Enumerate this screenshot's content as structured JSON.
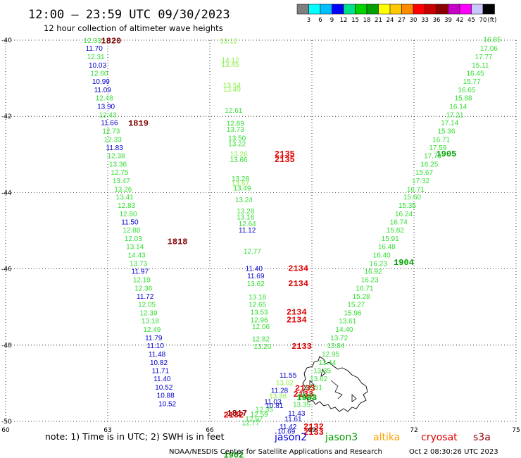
{
  "title": "12:00 — 23:59 UTC 09/30/2023",
  "subtitle": "12 hour collection of altimeter wave heights",
  "note": "note: 1) Time is in UTC; 2) SWH is in feet",
  "credit": "NOAA/NESDIS Center for Satellite Applications and Research",
  "timestamp": "Oct  2 08:30:26 UTC 2023",
  "colorbar": {
    "unit": "(ft)",
    "labels": [
      "3",
      "6",
      "9",
      "12",
      "15",
      "18",
      "21",
      "24",
      "27",
      "30",
      "33",
      "36",
      "39",
      "42",
      "45",
      "70"
    ],
    "colors": [
      "#7f7f7f",
      "#00ffff",
      "#00bfff",
      "#0000ff",
      "#00e08c",
      "#00d200",
      "#00a000",
      "#ffff00",
      "#ffc800",
      "#ff8c00",
      "#ff0000",
      "#c80000",
      "#8c0000",
      "#c800c8",
      "#ff00ff",
      "#c8c8ff",
      "#000000"
    ]
  },
  "legend": [
    {
      "name": "jason2",
      "color": "#0000dd"
    },
    {
      "name": "jason3",
      "color": "#00a000"
    },
    {
      "name": "altika",
      "color": "#ffa000"
    },
    {
      "name": "cryosat",
      "color": "#e00000"
    },
    {
      "name": "s3a",
      "color": "#900000"
    }
  ],
  "chart_data": {
    "type": "scatter",
    "xlim": [
      60,
      75
    ],
    "ylim": [
      -50,
      -40
    ],
    "xticks": [
      60,
      63,
      66,
      69,
      72,
      75
    ],
    "yticks": [
      -40,
      -42,
      -44,
      -46,
      -48,
      -50
    ],
    "grid": true,
    "color_key": {
      "blue": "#0000cc",
      "green": "#33dd33",
      "olive": "#00a000",
      "lime": "#88ee44",
      "red": "#e00000",
      "maroon": "#800000"
    },
    "points": [
      {
        "x": 62.55,
        "y": -40.07,
        "t": "12.33",
        "c": "green"
      },
      {
        "x": 62.6,
        "y": -40.28,
        "t": "11.70",
        "c": "blue"
      },
      {
        "x": 62.65,
        "y": -40.5,
        "t": "12.31",
        "c": "green"
      },
      {
        "x": 62.7,
        "y": -40.72,
        "t": "10.03",
        "c": "blue"
      },
      {
        "x": 62.75,
        "y": -40.93,
        "t": "12.60",
        "c": "green"
      },
      {
        "x": 62.8,
        "y": -41.15,
        "t": "10.99",
        "c": "blue"
      },
      {
        "x": 62.85,
        "y": -41.37,
        "t": "11.09",
        "c": "blue"
      },
      {
        "x": 62.9,
        "y": -41.58,
        "t": "12.48",
        "c": "green"
      },
      {
        "x": 62.95,
        "y": -41.8,
        "t": "13.90",
        "c": "blue"
      },
      {
        "x": 63.0,
        "y": -42.02,
        "t": "12.43",
        "c": "green"
      },
      {
        "x": 63.05,
        "y": -42.23,
        "t": "11.66",
        "c": "blue"
      },
      {
        "x": 63.1,
        "y": -42.45,
        "t": "12.73",
        "c": "green"
      },
      {
        "x": 63.15,
        "y": -42.67,
        "t": "12.33",
        "c": "green"
      },
      {
        "x": 63.2,
        "y": -42.88,
        "t": "11.83",
        "c": "blue"
      },
      {
        "x": 63.25,
        "y": -43.1,
        "t": "12.38",
        "c": "green"
      },
      {
        "x": 63.3,
        "y": -43.32,
        "t": "13.36",
        "c": "green"
      },
      {
        "x": 63.35,
        "y": -43.53,
        "t": "12.75",
        "c": "green"
      },
      {
        "x": 63.4,
        "y": -43.75,
        "t": "13.47",
        "c": "green"
      },
      {
        "x": 63.45,
        "y": -43.97,
        "t": "13.26",
        "c": "green"
      },
      {
        "x": 63.5,
        "y": -44.18,
        "t": "13.41",
        "c": "green"
      },
      {
        "x": 63.55,
        "y": -44.4,
        "t": "12.83",
        "c": "green"
      },
      {
        "x": 63.6,
        "y": -44.62,
        "t": "12.80",
        "c": "green"
      },
      {
        "x": 63.65,
        "y": -44.83,
        "t": "11.50",
        "c": "blue"
      },
      {
        "x": 63.7,
        "y": -45.05,
        "t": "12.88",
        "c": "green"
      },
      {
        "x": 63.75,
        "y": -45.27,
        "t": "12.03",
        "c": "green"
      },
      {
        "x": 63.8,
        "y": -45.48,
        "t": "13.14",
        "c": "green"
      },
      {
        "x": 63.85,
        "y": -45.7,
        "t": "14.43",
        "c": "green"
      },
      {
        "x": 63.9,
        "y": -45.92,
        "t": "13.73",
        "c": "green"
      },
      {
        "x": 63.95,
        "y": -46.13,
        "t": "11.97",
        "c": "blue"
      },
      {
        "x": 64.0,
        "y": -46.35,
        "t": "12.19",
        "c": "green"
      },
      {
        "x": 64.05,
        "y": -46.57,
        "t": "12.36",
        "c": "green"
      },
      {
        "x": 64.1,
        "y": -46.78,
        "t": "11.72",
        "c": "blue"
      },
      {
        "x": 64.15,
        "y": -47.0,
        "t": "12.05",
        "c": "green"
      },
      {
        "x": 64.2,
        "y": -47.22,
        "t": "12.39",
        "c": "green"
      },
      {
        "x": 64.25,
        "y": -47.43,
        "t": "13.18",
        "c": "green"
      },
      {
        "x": 64.3,
        "y": -47.65,
        "t": "12.49",
        "c": "green"
      },
      {
        "x": 64.35,
        "y": -47.87,
        "t": "11.79",
        "c": "blue"
      },
      {
        "x": 64.4,
        "y": -48.08,
        "t": "11.10",
        "c": "blue"
      },
      {
        "x": 64.45,
        "y": -48.3,
        "t": "11.48",
        "c": "blue"
      },
      {
        "x": 64.5,
        "y": -48.52,
        "t": "10.82",
        "c": "blue"
      },
      {
        "x": 64.55,
        "y": -48.73,
        "t": "11.71",
        "c": "blue"
      },
      {
        "x": 64.6,
        "y": -48.95,
        "t": "11.40",
        "c": "blue"
      },
      {
        "x": 64.65,
        "y": -49.17,
        "t": "10.52",
        "c": "blue"
      },
      {
        "x": 64.7,
        "y": -49.38,
        "t": "10.88",
        "c": "blue"
      },
      {
        "x": 64.75,
        "y": -49.6,
        "t": "10.52",
        "c": "blue"
      },
      {
        "x": 66.55,
        "y": -40.08,
        "t": "13.12",
        "c": "lime"
      },
      {
        "x": 66.6,
        "y": -40.58,
        "t": "14.12",
        "c": "lime"
      },
      {
        "x": 66.6,
        "y": -40.7,
        "t": "13.45",
        "c": "lime"
      },
      {
        "x": 66.65,
        "y": -41.25,
        "t": "13.54",
        "c": "lime"
      },
      {
        "x": 66.65,
        "y": -41.35,
        "t": "13.49",
        "c": "lime"
      },
      {
        "x": 66.7,
        "y": -41.9,
        "t": "12.61",
        "c": "green"
      },
      {
        "x": 66.75,
        "y": -42.25,
        "t": "12.89",
        "c": "green"
      },
      {
        "x": 66.75,
        "y": -42.4,
        "t": "13.73",
        "c": "green"
      },
      {
        "x": 66.8,
        "y": -42.63,
        "t": "13.50",
        "c": "green"
      },
      {
        "x": 66.8,
        "y": -42.78,
        "t": "13.22",
        "c": "green"
      },
      {
        "x": 66.85,
        "y": -43.05,
        "t": "13.26",
        "c": "lime"
      },
      {
        "x": 66.85,
        "y": -43.2,
        "t": "13.66",
        "c": "green"
      },
      {
        "x": 66.9,
        "y": -43.7,
        "t": "13.28",
        "c": "green"
      },
      {
        "x": 66.9,
        "y": -43.82,
        "t": "13.67",
        "c": "lime"
      },
      {
        "x": 66.95,
        "y": -43.95,
        "t": "13.49",
        "c": "green"
      },
      {
        "x": 67.0,
        "y": -44.25,
        "t": "13.24",
        "c": "green"
      },
      {
        "x": 67.05,
        "y": -44.55,
        "t": "13.28",
        "c": "green"
      },
      {
        "x": 67.05,
        "y": -44.7,
        "t": "13.16",
        "c": "green"
      },
      {
        "x": 67.1,
        "y": -44.88,
        "t": "12.64",
        "c": "green"
      },
      {
        "x": 67.1,
        "y": -45.05,
        "t": "11.12",
        "c": "blue"
      },
      {
        "x": 67.25,
        "y": -45.6,
        "t": "12.77",
        "c": "green"
      },
      {
        "x": 67.3,
        "y": -46.05,
        "t": "11.40",
        "c": "blue"
      },
      {
        "x": 67.35,
        "y": -46.25,
        "t": "11.69",
        "c": "blue"
      },
      {
        "x": 67.35,
        "y": -46.45,
        "t": "13.62",
        "c": "green"
      },
      {
        "x": 67.4,
        "y": -46.8,
        "t": "13.18",
        "c": "green"
      },
      {
        "x": 67.4,
        "y": -47.0,
        "t": "12.65",
        "c": "green"
      },
      {
        "x": 67.45,
        "y": -47.2,
        "t": "13.53",
        "c": "green"
      },
      {
        "x": 67.45,
        "y": -47.4,
        "t": "12.96",
        "c": "green"
      },
      {
        "x": 67.5,
        "y": -47.58,
        "t": "12.06",
        "c": "green"
      },
      {
        "x": 67.5,
        "y": -47.9,
        "t": "12.82",
        "c": "green"
      },
      {
        "x": 67.55,
        "y": -48.1,
        "t": "13.20",
        "c": "green"
      },
      {
        "x": 68.3,
        "y": -48.85,
        "t": "11.55",
        "c": "blue"
      },
      {
        "x": 68.2,
        "y": -49.05,
        "t": "13.02",
        "c": "lime"
      },
      {
        "x": 68.05,
        "y": -49.25,
        "t": "11.28",
        "c": "blue"
      },
      {
        "x": 68.0,
        "y": -49.4,
        "t": "13.36",
        "c": "lime"
      },
      {
        "x": 67.85,
        "y": -49.55,
        "t": "11.03",
        "c": "blue"
      },
      {
        "x": 67.9,
        "y": -49.65,
        "t": "10.81",
        "c": "blue"
      },
      {
        "x": 67.6,
        "y": -49.75,
        "t": "12.35",
        "c": "green"
      },
      {
        "x": 67.45,
        "y": -49.88,
        "t": "12.59",
        "c": "green"
      },
      {
        "x": 67.3,
        "y": -50.0,
        "t": "12.97",
        "c": "green"
      },
      {
        "x": 67.2,
        "y": -50.1,
        "t": "12.77",
        "c": "green"
      },
      {
        "x": 74.3,
        "y": -40.05,
        "t": "16.85",
        "c": "green"
      },
      {
        "x": 74.2,
        "y": -40.28,
        "t": "17.06",
        "c": "green"
      },
      {
        "x": 74.05,
        "y": -40.5,
        "t": "17.77",
        "c": "green"
      },
      {
        "x": 73.95,
        "y": -40.72,
        "t": "15.11",
        "c": "green"
      },
      {
        "x": 73.8,
        "y": -40.93,
        "t": "16.45",
        "c": "green"
      },
      {
        "x": 73.7,
        "y": -41.15,
        "t": "15.77",
        "c": "green"
      },
      {
        "x": 73.55,
        "y": -41.37,
        "t": "16.65",
        "c": "green"
      },
      {
        "x": 73.45,
        "y": -41.58,
        "t": "15.88",
        "c": "green"
      },
      {
        "x": 73.3,
        "y": -41.8,
        "t": "16.14",
        "c": "green"
      },
      {
        "x": 73.2,
        "y": -42.02,
        "t": "17.21",
        "c": "green"
      },
      {
        "x": 73.05,
        "y": -42.23,
        "t": "17.14",
        "c": "green"
      },
      {
        "x": 72.95,
        "y": -42.45,
        "t": "15.36",
        "c": "green"
      },
      {
        "x": 72.8,
        "y": -42.67,
        "t": "16.71",
        "c": "green"
      },
      {
        "x": 72.7,
        "y": -42.88,
        "t": "17.59",
        "c": "green"
      },
      {
        "x": 72.55,
        "y": -43.1,
        "t": "17.73",
        "c": "green"
      },
      {
        "x": 72.45,
        "y": -43.32,
        "t": "16.25",
        "c": "green"
      },
      {
        "x": 72.3,
        "y": -43.53,
        "t": "15.67",
        "c": "green"
      },
      {
        "x": 72.2,
        "y": -43.75,
        "t": "17.32",
        "c": "green"
      },
      {
        "x": 72.05,
        "y": -43.97,
        "t": "16.71",
        "c": "green"
      },
      {
        "x": 71.95,
        "y": -44.18,
        "t": "15.60",
        "c": "green"
      },
      {
        "x": 71.8,
        "y": -44.4,
        "t": "15.35",
        "c": "green"
      },
      {
        "x": 71.7,
        "y": -44.62,
        "t": "16.24",
        "c": "green"
      },
      {
        "x": 71.55,
        "y": -44.83,
        "t": "16.74",
        "c": "green"
      },
      {
        "x": 71.45,
        "y": -45.05,
        "t": "15.82",
        "c": "green"
      },
      {
        "x": 71.3,
        "y": -45.27,
        "t": "15.91",
        "c": "green"
      },
      {
        "x": 71.2,
        "y": -45.48,
        "t": "16.48",
        "c": "green"
      },
      {
        "x": 71.05,
        "y": -45.7,
        "t": "16.40",
        "c": "green"
      },
      {
        "x": 70.95,
        "y": -45.92,
        "t": "16.23",
        "c": "green"
      },
      {
        "x": 70.8,
        "y": -46.13,
        "t": "16.92",
        "c": "green"
      },
      {
        "x": 70.7,
        "y": -46.35,
        "t": "16.23",
        "c": "green"
      },
      {
        "x": 70.55,
        "y": -46.57,
        "t": "16.71",
        "c": "green"
      },
      {
        "x": 70.45,
        "y": -46.78,
        "t": "15.28",
        "c": "green"
      },
      {
        "x": 70.3,
        "y": -47.0,
        "t": "15.27",
        "c": "green"
      },
      {
        "x": 70.2,
        "y": -47.22,
        "t": "15.96",
        "c": "green"
      },
      {
        "x": 70.05,
        "y": -47.43,
        "t": "13.61",
        "c": "green"
      },
      {
        "x": 69.95,
        "y": -47.65,
        "t": "14.40",
        "c": "green"
      },
      {
        "x": 69.8,
        "y": -47.87,
        "t": "13.72",
        "c": "green"
      },
      {
        "x": 69.7,
        "y": -48.08,
        "t": "13.84",
        "c": "green"
      },
      {
        "x": 69.55,
        "y": -48.3,
        "t": "12.95",
        "c": "green"
      },
      {
        "x": 69.45,
        "y": -48.52,
        "t": "13.44",
        "c": "green"
      },
      {
        "x": 69.3,
        "y": -48.73,
        "t": "13.35",
        "c": "green"
      },
      {
        "x": 69.2,
        "y": -48.95,
        "t": "13.62",
        "c": "green"
      },
      {
        "x": 69.05,
        "y": -49.17,
        "t": "12.51",
        "c": "green"
      },
      {
        "x": 68.85,
        "y": -49.4,
        "t": "12.31",
        "c": "green"
      },
      {
        "x": 68.7,
        "y": -49.62,
        "t": "13.35",
        "c": "green"
      },
      {
        "x": 68.55,
        "y": -49.85,
        "t": "11.43",
        "c": "blue"
      },
      {
        "x": 68.45,
        "y": -50.0,
        "t": "11.61",
        "c": "blue"
      },
      {
        "x": 68.3,
        "y": -50.2,
        "t": "11.42",
        "c": "blue"
      },
      {
        "x": 68.25,
        "y": -50.32,
        "t": "10.69",
        "c": "blue"
      }
    ],
    "time_labels": [
      {
        "x": 63.1,
        "y": -40.08,
        "t": "1820",
        "c": "maroon"
      },
      {
        "x": 63.9,
        "y": -42.25,
        "t": "1819",
        "c": "maroon"
      },
      {
        "x": 65.05,
        "y": -45.35,
        "t": "1818",
        "c": "maroon"
      },
      {
        "x": 66.8,
        "y": -49.85,
        "t": "1817",
        "c": "maroon"
      },
      {
        "x": 68.2,
        "y": -43.05,
        "t": "2135",
        "c": "red"
      },
      {
        "x": 68.2,
        "y": -43.2,
        "t": "2135",
        "c": "red"
      },
      {
        "x": 68.6,
        "y": -46.05,
        "t": "2134",
        "c": "red"
      },
      {
        "x": 68.6,
        "y": -46.45,
        "t": "2134",
        "c": "red"
      },
      {
        "x": 68.55,
        "y": -47.2,
        "t": "2134",
        "c": "red"
      },
      {
        "x": 68.55,
        "y": -47.4,
        "t": "2134",
        "c": "red"
      },
      {
        "x": 68.7,
        "y": -48.1,
        "t": "2133",
        "c": "red"
      },
      {
        "x": 68.8,
        "y": -49.2,
        "t": "2133",
        "c": "red"
      },
      {
        "x": 68.75,
        "y": -49.35,
        "t": "2133",
        "c": "red"
      },
      {
        "x": 66.7,
        "y": -49.9,
        "t": "2132",
        "c": "red"
      },
      {
        "x": 69.05,
        "y": -50.2,
        "t": "2132",
        "c": "red"
      },
      {
        "x": 69.05,
        "y": -50.35,
        "t": "2133",
        "c": "red"
      },
      {
        "x": 72.95,
        "y": -43.05,
        "t": "1905",
        "c": "olive"
      },
      {
        "x": 71.7,
        "y": -45.9,
        "t": "1904",
        "c": "olive"
      },
      {
        "x": 68.85,
        "y": -49.45,
        "t": "1903",
        "c": "olive"
      },
      {
        "x": 66.7,
        "y": -50.95,
        "t": "1902",
        "c": "olive"
      }
    ]
  }
}
